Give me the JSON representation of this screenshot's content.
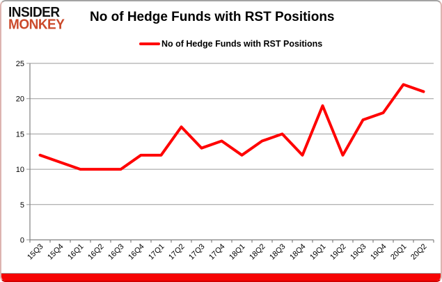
{
  "brand": {
    "line1": "INSIDER",
    "line2": "MONKEY"
  },
  "header": {
    "title": "No of Hedge Funds with RST Positions"
  },
  "legend": {
    "label": "No of Hedge Funds with RST Positions",
    "swatch_color": "#ff0000"
  },
  "colors": {
    "series": "#ff0000",
    "brand_accent": "#cb4a2b",
    "grid": "#9a9a9a",
    "axis": "#808080",
    "bottom_bar": "#f60505",
    "text": "#000000"
  },
  "chart_data": {
    "type": "line",
    "title": "No of Hedge Funds with RST Positions",
    "categories": [
      "15Q3",
      "15Q4",
      "16Q1",
      "16Q2",
      "16Q3",
      "16Q4",
      "17Q1",
      "17Q2",
      "17Q3",
      "17Q4",
      "18Q1",
      "18Q2",
      "18Q3",
      "18Q4",
      "19Q1",
      "19Q2",
      "19Q3",
      "19Q4",
      "20Q1",
      "20Q2"
    ],
    "series": [
      {
        "name": "No of Hedge Funds with RST Positions",
        "color": "#ff0000",
        "values": [
          12,
          11,
          10,
          10,
          10,
          12,
          12,
          16,
          13,
          14,
          12,
          14,
          15,
          12,
          19,
          12,
          17,
          18,
          22,
          21
        ]
      }
    ],
    "ylim": [
      0,
      25
    ],
    "ytick_step": 5,
    "xlabel": "",
    "ylabel": "",
    "grid": true,
    "legend_position": "top"
  }
}
